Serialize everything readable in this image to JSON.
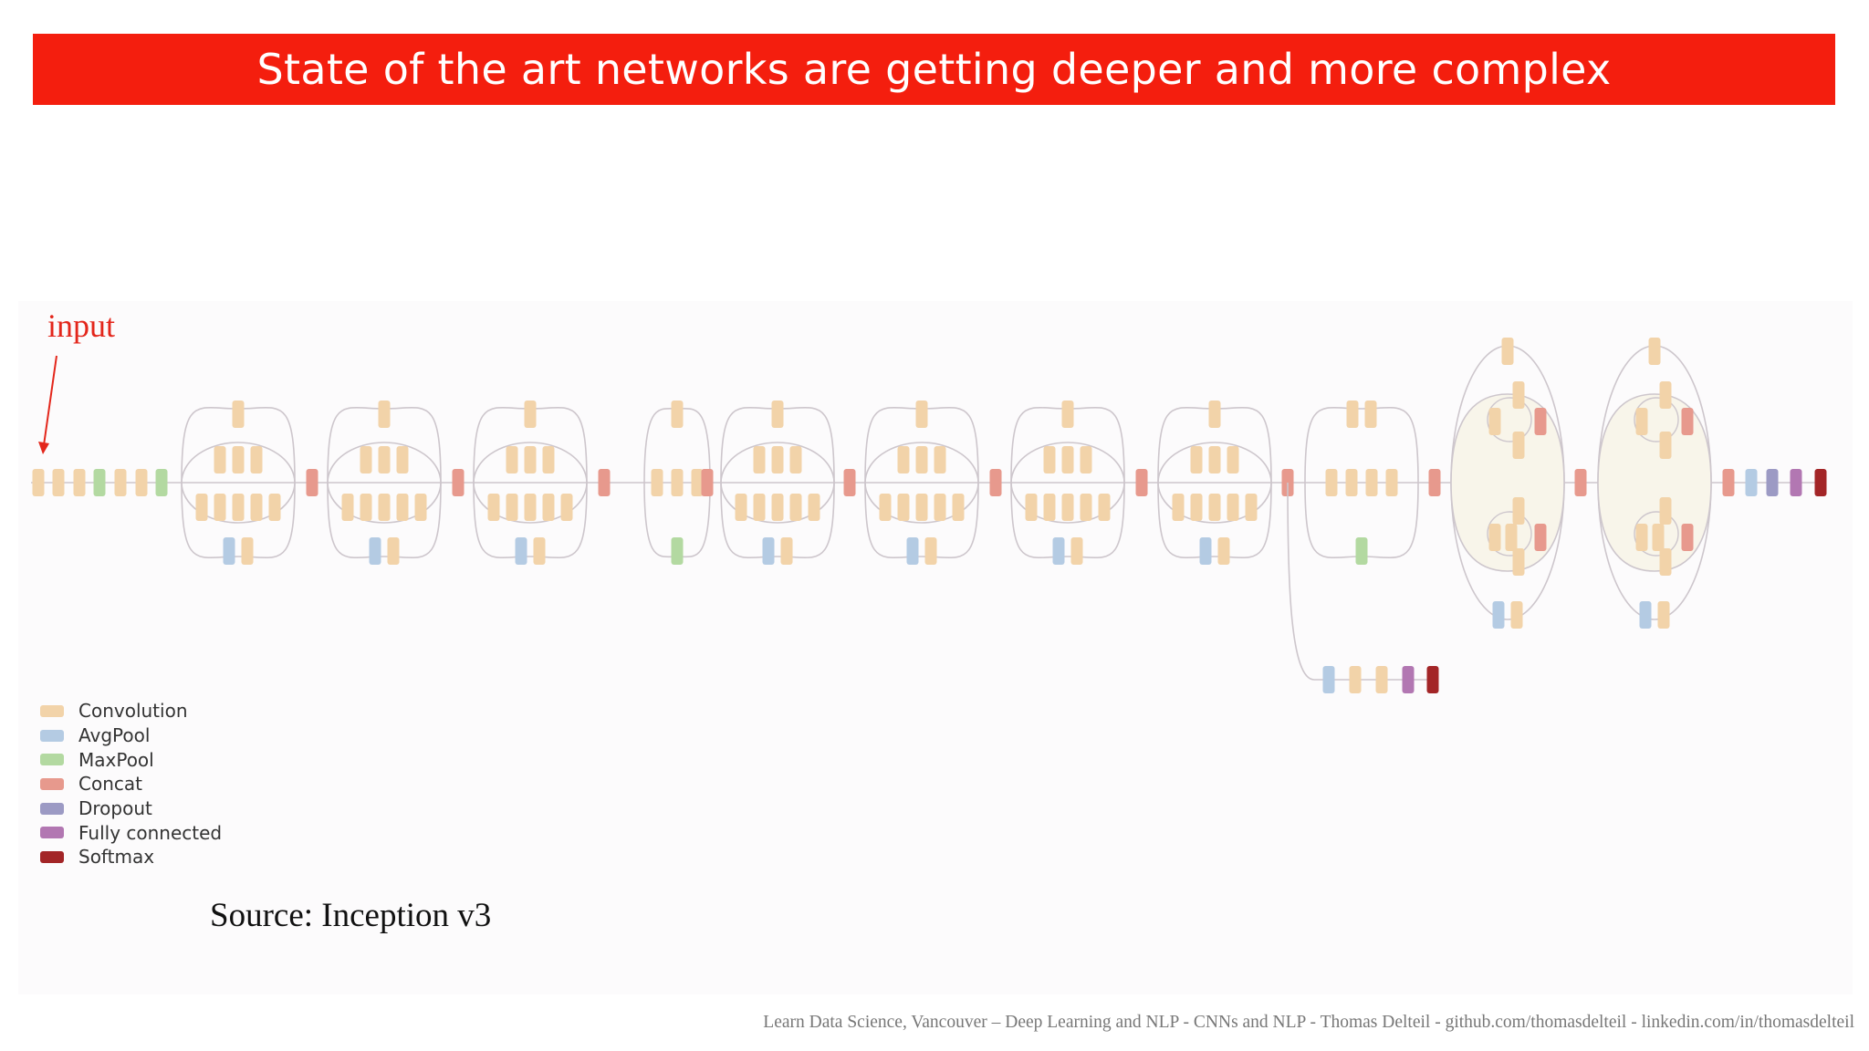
{
  "slide": {
    "title": "State of the art networks are getting deeper and more complex",
    "input_label": "input",
    "source_text": "Source: Inception v3",
    "footer_text": "Learn Data Science, Vancouver – Deep Learning and NLP - CNNs and NLP - Thomas Delteil - github.com/thomasdelteil - linkedin.com/in/thomasdelteil"
  },
  "colors": {
    "banner": "#f41e0e",
    "arrow": "#e3261b",
    "Convolution": "#f2d3a9",
    "AvgPool": "#b4cbe3",
    "MaxPool": "#b3d9a1",
    "Concat": "#e7998d",
    "Dropout": "#9c9ac4",
    "Fully connected": "#b277b2",
    "Softmax": "#a32527"
  },
  "legend": [
    {
      "label": "Convolution",
      "color": "#f2d3a9"
    },
    {
      "label": "AvgPool",
      "color": "#b4cbe3"
    },
    {
      "label": "MaxPool",
      "color": "#b3d9a1"
    },
    {
      "label": "Concat",
      "color": "#e7998d"
    },
    {
      "label": "Dropout",
      "color": "#9c9ac4"
    },
    {
      "label": "Fully connected",
      "color": "#b277b2"
    },
    {
      "label": "Softmax",
      "color": "#a32527"
    }
  ],
  "network": {
    "stem": [
      "Convolution",
      "Convolution",
      "Convolution",
      "MaxPool",
      "Convolution",
      "Convolution",
      "MaxPool"
    ],
    "stages": [
      {
        "kind": "module_a",
        "pool": "AvgPool"
      },
      "Concat",
      {
        "kind": "module_a",
        "pool": "AvgPool"
      },
      "Concat",
      {
        "kind": "module_a",
        "pool": "AvgPool"
      },
      "Concat",
      {
        "kind": "reduction_a",
        "pool": "MaxPool"
      },
      "Concat",
      {
        "kind": "module_a",
        "pool": "AvgPool"
      },
      "Concat",
      {
        "kind": "module_a",
        "pool": "AvgPool"
      },
      "Concat",
      {
        "kind": "module_a",
        "pool": "AvgPool"
      },
      "Concat",
      {
        "kind": "module_a",
        "pool": "AvgPool"
      },
      "Concat",
      {
        "kind": "reduction_b",
        "pool": "MaxPool"
      },
      "Concat",
      {
        "kind": "module_c",
        "pool": "AvgPool"
      },
      "Concat",
      {
        "kind": "module_c",
        "pool": "AvgPool"
      },
      "Concat"
    ],
    "head": [
      "AvgPool",
      "Dropout",
      "Fully connected",
      "Softmax"
    ],
    "auxiliary_head": [
      "AvgPool",
      "Convolution",
      "Convolution",
      "Fully connected",
      "Softmax"
    ]
  }
}
